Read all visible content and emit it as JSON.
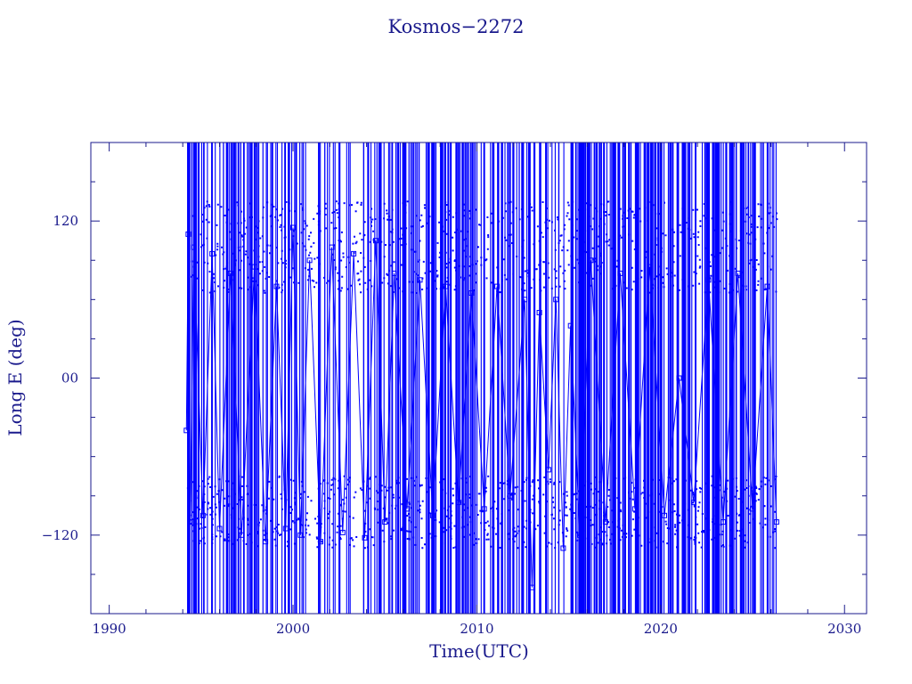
{
  "colors": {
    "axis": "#1a1a8c",
    "data": "#0000ff",
    "background": "#ffffff"
  },
  "chart_data": {
    "type": "line",
    "title": "Kosmos−2272",
    "xlabel": "Time(UTC)",
    "ylabel": "Long E (deg)",
    "xlim": [
      1989.0,
      2031.2
    ],
    "ylim": [
      -180,
      180
    ],
    "xticks": [
      1990,
      2000,
      2010,
      2020,
      2030
    ],
    "xtick_labels": [
      "1990",
      "2000",
      "2010",
      "2020",
      "2030"
    ],
    "yticks": [
      120,
      0,
      -120
    ],
    "ytick_labels": [
      "120",
      "00",
      "−120"
    ],
    "grid": false,
    "marker": "square",
    "data_span": [
      1994.2,
      2026.3
    ],
    "series": [
      {
        "values": [
          [
            1994.2,
            -40
          ],
          [
            1994.3,
            110
          ],
          [
            1994.4,
            -110
          ],
          [
            1994.6,
            100
          ],
          [
            1995.1,
            -105
          ],
          [
            1995.6,
            95
          ],
          [
            1996.0,
            -115
          ],
          [
            1996.6,
            80
          ],
          [
            1997.2,
            -120
          ],
          [
            1997.9,
            85
          ],
          [
            1998.5,
            -125
          ],
          [
            1999.1,
            70
          ],
          [
            1999.6,
            -115
          ],
          [
            2000.0,
            115
          ],
          [
            2000.4,
            -120
          ],
          [
            2000.9,
            90
          ],
          [
            2001.5,
            -125
          ],
          [
            2002.1,
            100
          ],
          [
            2002.7,
            -118
          ],
          [
            2003.3,
            95
          ],
          [
            2003.9,
            -122
          ],
          [
            2004.5,
            105
          ],
          [
            2005.0,
            -110
          ],
          [
            2005.5,
            80
          ],
          [
            2006.2,
            -100
          ],
          [
            2006.9,
            75
          ],
          [
            2007.6,
            -105
          ],
          [
            2008.3,
            70
          ],
          [
            2009.0,
            -95
          ],
          [
            2009.7,
            65
          ],
          [
            2010.4,
            -100
          ],
          [
            2011.1,
            70
          ],
          [
            2011.8,
            -90
          ],
          [
            2012.6,
            60
          ],
          [
            2013.0,
            -160
          ],
          [
            2013.4,
            50
          ],
          [
            2013.9,
            -70
          ],
          [
            2014.3,
            60
          ],
          [
            2014.7,
            -130
          ],
          [
            2015.1,
            40
          ],
          [
            2015.6,
            -120
          ],
          [
            2016.2,
            90
          ],
          [
            2017.0,
            -110
          ],
          [
            2017.8,
            80
          ],
          [
            2018.6,
            -100
          ],
          [
            2019.4,
            85
          ],
          [
            2020.2,
            -105
          ],
          [
            2021.0,
            0
          ],
          [
            2021.8,
            -95
          ],
          [
            2022.6,
            75
          ],
          [
            2023.4,
            -110
          ],
          [
            2024.2,
            80
          ],
          [
            2025.0,
            -100
          ],
          [
            2025.8,
            70
          ],
          [
            2026.3,
            -110
          ]
        ]
      }
    ]
  }
}
